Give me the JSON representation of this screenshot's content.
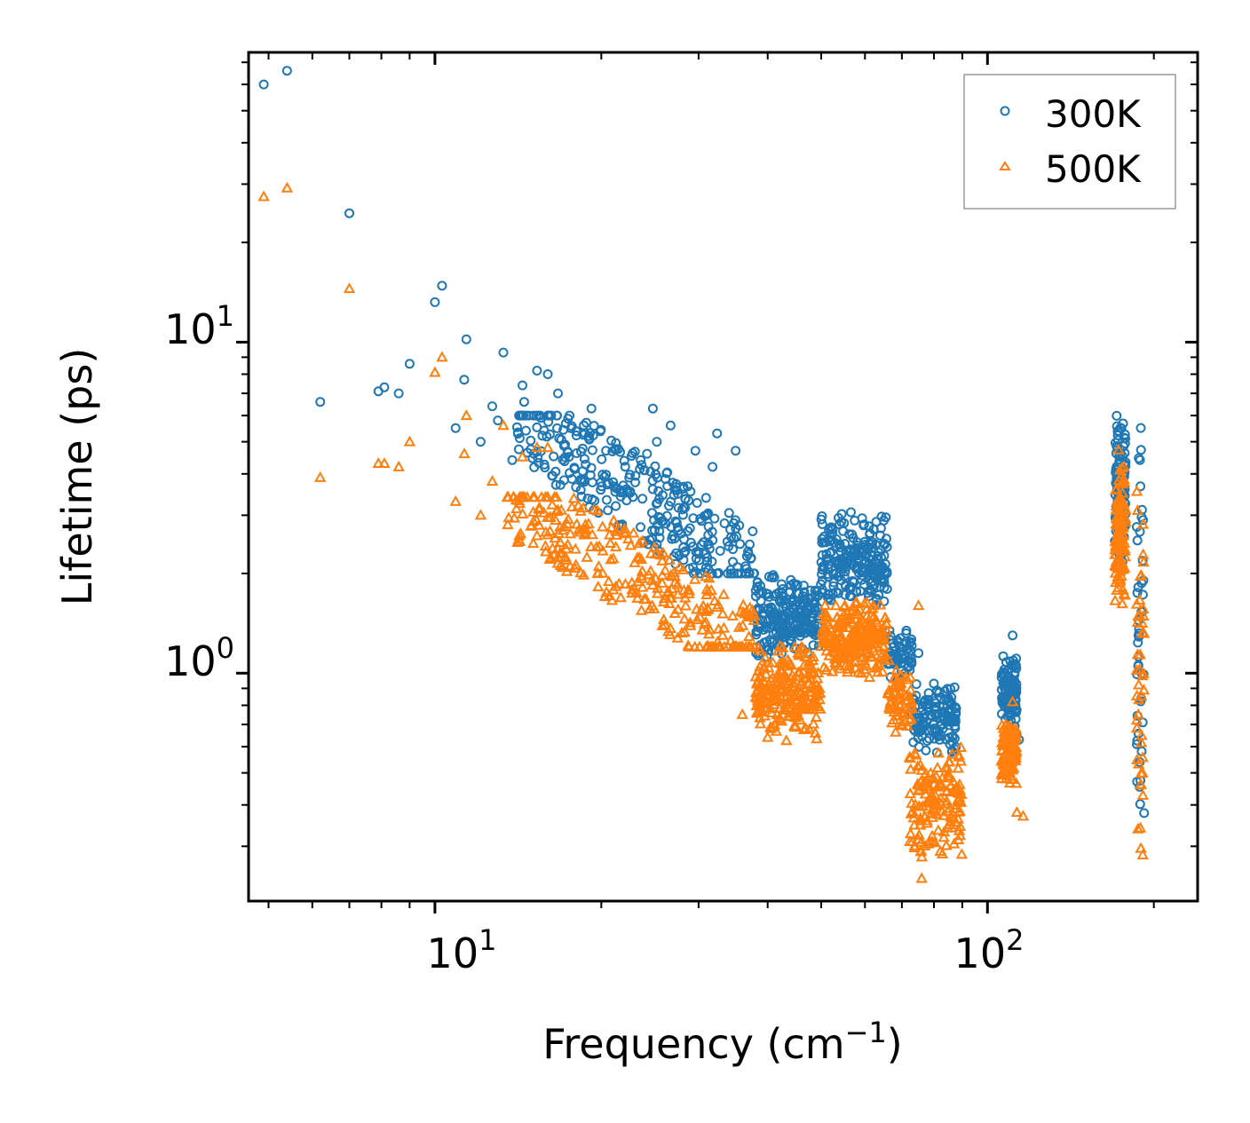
{
  "chart_data": {
    "type": "scatter",
    "xscale": "log",
    "yscale": "log",
    "xlabel": "Frequency (cm",
    "xlabel_sup": "−1",
    "xlabel_close": ")",
    "ylabel": "Lifetime (ps)",
    "xlim": [
      4.6,
      240
    ],
    "ylim": [
      0.205,
      75
    ],
    "xticks": [
      {
        "base": "10",
        "exp": "1",
        "value": 10
      },
      {
        "base": "10",
        "exp": "2",
        "value": 100
      }
    ],
    "yticks": [
      {
        "base": "10",
        "exp": "0",
        "value": 1
      },
      {
        "base": "10",
        "exp": "1",
        "value": 10
      }
    ],
    "legend_position": "top-right",
    "series": [
      {
        "name": "300K",
        "marker": "circle",
        "color": "#1f77b4",
        "points": [
          [
            4.9,
            60
          ],
          [
            5.4,
            66
          ],
          [
            6.2,
            6.6
          ],
          [
            7.0,
            24.5
          ],
          [
            7.9,
            7.1
          ],
          [
            8.1,
            7.3
          ],
          [
            8.6,
            7.0
          ],
          [
            9.0,
            8.6
          ],
          [
            10.0,
            13.2
          ],
          [
            10.3,
            14.8
          ],
          [
            10.9,
            5.5
          ],
          [
            11.3,
            7.7
          ],
          [
            11.4,
            10.2
          ],
          [
            12.1,
            5.0
          ],
          [
            12.7,
            6.4
          ],
          [
            13.0,
            5.8
          ],
          [
            13.3,
            9.3
          ],
          [
            13.8,
            4.4
          ],
          [
            14.4,
            7.4
          ],
          [
            14.5,
            6.6
          ],
          [
            15.1,
            4.6
          ],
          [
            15.3,
            8.2
          ],
          [
            16.0,
            8.0
          ],
          [
            16.7,
            7.0
          ],
          [
            17.2,
            4.9
          ],
          [
            19.2,
            6.3
          ],
          [
            20.4,
            4.7
          ],
          [
            24.2,
            4.6
          ],
          [
            24.8,
            6.3
          ],
          [
            25.2,
            5.0
          ],
          [
            26.7,
            5.6
          ],
          [
            29.6,
            4.7
          ],
          [
            31.8,
            4.2
          ],
          [
            32.4,
            5.3
          ],
          [
            35.0,
            4.7
          ],
          [
            62.0,
            2.4
          ],
          [
            69.0,
            1.1
          ],
          [
            75.0,
            1.15
          ],
          [
            111.0,
            1.3
          ],
          [
            114.0,
            0.63
          ]
        ],
        "clusters": [
          {
            "x": [
              14.0,
              38.0
            ],
            "y": [
              2.0,
              6.0
            ],
            "n": 320,
            "shape": "trend"
          },
          {
            "x": [
              38.0,
              50.0
            ],
            "y": [
              1.1,
              2.0
            ],
            "n": 230
          },
          {
            "x": [
              50.0,
              66.0
            ],
            "y": [
              1.5,
              3.2
            ],
            "n": 230
          },
          {
            "x": [
              66.0,
              73.0
            ],
            "y": [
              0.9,
              1.4
            ],
            "n": 60
          },
          {
            "x": [
              73.0,
              88.0
            ],
            "y": [
              0.55,
              0.95
            ],
            "n": 130
          },
          {
            "x": [
              106.0,
              113.0
            ],
            "y": [
              0.63,
              1.2
            ],
            "n": 110
          },
          {
            "x": [
              170.0,
              178.0
            ],
            "y": [
              2.0,
              6.5
            ],
            "n": 110
          },
          {
            "x": [
              186.0,
              192.0
            ],
            "y": [
              0.25,
              6.2
            ],
            "n": 45
          }
        ]
      },
      {
        "name": "500K",
        "marker": "triangle",
        "color": "#ff7f0e",
        "points": [
          [
            4.9,
            27.5
          ],
          [
            5.4,
            29.2
          ],
          [
            6.2,
            3.9
          ],
          [
            7.0,
            14.5
          ],
          [
            7.9,
            4.3
          ],
          [
            8.1,
            4.3
          ],
          [
            8.6,
            4.2
          ],
          [
            9.0,
            5.0
          ],
          [
            10.0,
            8.1
          ],
          [
            10.3,
            9.0
          ],
          [
            10.9,
            3.3
          ],
          [
            11.3,
            4.6
          ],
          [
            11.4,
            6.0
          ],
          [
            12.1,
            3.0
          ],
          [
            12.7,
            3.8
          ],
          [
            13.3,
            5.6
          ],
          [
            14.4,
            4.5
          ],
          [
            15.3,
            4.8
          ],
          [
            16.0,
            4.8
          ],
          [
            36.0,
            0.75
          ],
          [
            40.0,
            0.64
          ],
          [
            75.0,
            1.6
          ],
          [
            76.0,
            0.24
          ],
          [
            111.0,
            0.82
          ],
          [
            113.0,
            0.38
          ],
          [
            116.0,
            0.37
          ]
        ],
        "clusters": [
          {
            "x": [
              13.5,
              38.0
            ],
            "y": [
              1.2,
              3.4
            ],
            "n": 300,
            "shape": "trend"
          },
          {
            "x": [
              38.0,
              50.0
            ],
            "y": [
              0.62,
              1.25
            ],
            "n": 230
          },
          {
            "x": [
              50.0,
              66.0
            ],
            "y": [
              0.95,
              1.7
            ],
            "n": 230
          },
          {
            "x": [
              66.0,
              73.0
            ],
            "y": [
              0.65,
              1.1
            ],
            "n": 60
          },
          {
            "x": [
              72.0,
              90.0
            ],
            "y": [
              0.27,
              0.62
            ],
            "n": 150
          },
          {
            "x": [
              106.0,
              113.0
            ],
            "y": [
              0.44,
              0.73
            ],
            "n": 100
          },
          {
            "x": [
              170.0,
              178.0
            ],
            "y": [
              1.5,
              4.8
            ],
            "n": 110
          },
          {
            "x": [
              186.0,
              192.0
            ],
            "y": [
              0.24,
              4.2
            ],
            "n": 45
          }
        ]
      }
    ]
  }
}
